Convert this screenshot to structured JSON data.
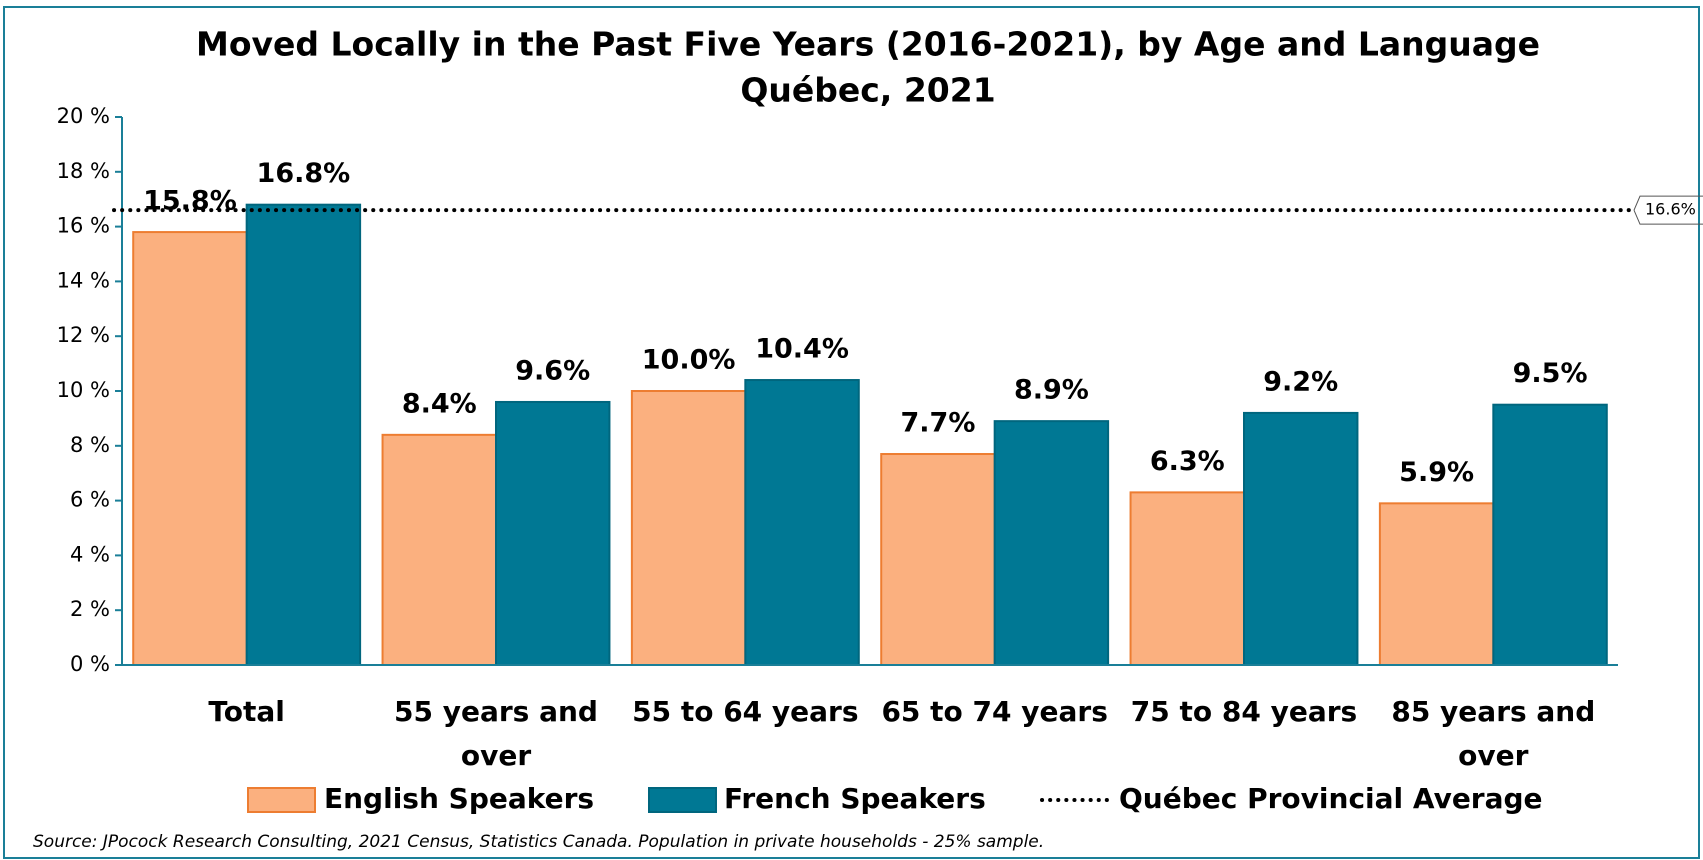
{
  "chart_data": {
    "type": "bar",
    "title": "Moved Locally in the Past Five Years (2016-2021), by Age and Language",
    "subtitle": "Québec, 2021",
    "categories": [
      "Total",
      "55 years and over",
      "55 to 64 years",
      "65 to 74 years",
      "75 to 84 years",
      "85 years and over"
    ],
    "series": [
      {
        "name": "English Speakers",
        "color": "#fbb07f",
        "values": [
          15.8,
          8.4,
          10.0,
          7.7,
          6.3,
          5.9
        ],
        "value_labels": [
          "15.8%",
          "8.4%",
          "10.0%",
          "7.7%",
          "6.3%",
          "5.9%"
        ]
      },
      {
        "name": "French Speakers",
        "color": "#007894",
        "values": [
          16.8,
          9.6,
          10.4,
          8.9,
          9.2,
          9.5
        ],
        "value_labels": [
          "16.8%",
          "9.6%",
          "10.4%",
          "8.9%",
          "9.2%",
          "9.5%"
        ]
      }
    ],
    "reference_line": {
      "name": "Québec Provincial Average",
      "value": 16.6,
      "label": "16.6%"
    },
    "ylim": [
      0,
      20
    ],
    "yticks": [
      {
        "value": 0,
        "label": "0 %"
      },
      {
        "value": 2,
        "label": "2 %"
      },
      {
        "value": 4,
        "label": "4 %"
      },
      {
        "value": 6,
        "label": "6 %"
      },
      {
        "value": 8,
        "label": "8 %"
      },
      {
        "value": 10,
        "label": "10 %"
      },
      {
        "value": 12,
        "label": "12 %"
      },
      {
        "value": 14,
        "label": "14 %"
      },
      {
        "value": 16,
        "label": "16 %"
      },
      {
        "value": 18,
        "label": "18 %"
      },
      {
        "value": 20,
        "label": "20 %"
      }
    ],
    "source": "Source: JPocock Research Consulting, 2021 Census, Statistics Canada. Population in private households - 25% sample."
  }
}
